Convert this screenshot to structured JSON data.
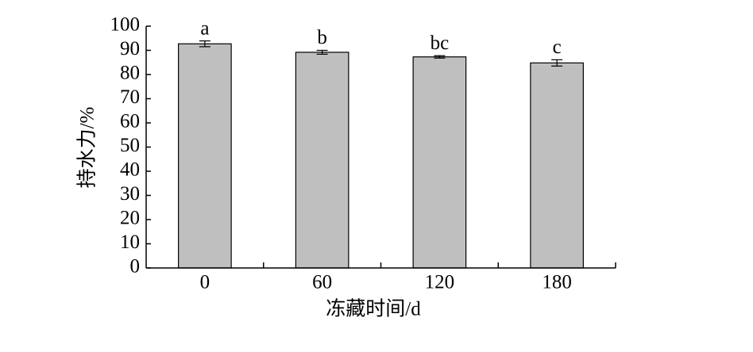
{
  "chart_data": {
    "type": "bar",
    "x_label": "冻藏时间/d",
    "y_label": "持水力/%",
    "categories": [
      "0",
      "60",
      "120",
      "180"
    ],
    "values": [
      92.7,
      89.2,
      87.3,
      84.8
    ],
    "errors": [
      1.2,
      0.8,
      0.5,
      1.3
    ],
    "significance_labels": [
      "a",
      "b",
      "bc",
      "c"
    ],
    "color": "#bfbfbf",
    "ylim": [
      0,
      100
    ],
    "yticks": [
      0,
      10,
      20,
      30,
      40,
      50,
      60,
      70,
      80,
      90,
      100
    ]
  }
}
